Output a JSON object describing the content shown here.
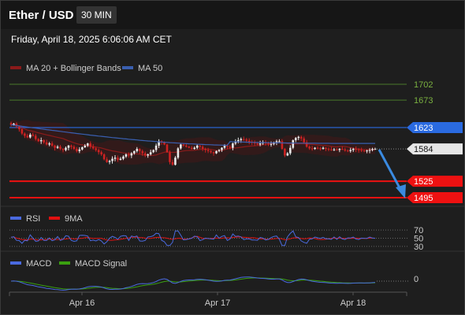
{
  "header": {
    "pair": "Ether / USD",
    "timeframe": "30 MIN",
    "datetime": "Friday, April 18, 2025 6:06:06 AM CET"
  },
  "colors": {
    "bg": "#1e1e1e",
    "up_candle": "#e8e8e8",
    "down_candle": "#cc2222",
    "ma20": "#8b1a1a",
    "ma50": "#3a5fb0",
    "green_level": "#4a7a2a",
    "blue_level": "#2a6ae0",
    "red_level": "#ee1111",
    "arrow": "#3a8ae0",
    "rsi": "#4a6adf",
    "rsi_ma": "#e01010",
    "macd": "#4a6adf",
    "macd_signal": "#3aa010"
  },
  "chart_data": [
    {
      "type": "candlestick",
      "legend": [
        {
          "name": "MA 20 + Bollinger Bands",
          "color": "#8b1a1a"
        },
        {
          "name": "MA 50",
          "color": "#3a5fb0"
        }
      ],
      "ylim": [
        1480,
        1720
      ],
      "levels": [
        {
          "value": 1702,
          "label": "1702",
          "style": "green-line"
        },
        {
          "value": 1673,
          "label": "1673",
          "style": "green-line"
        },
        {
          "value": 1623,
          "label": "1623",
          "style": "blue-tag"
        },
        {
          "value": 1584,
          "label": "1584",
          "style": "current-price"
        },
        {
          "value": 1525,
          "label": "1525",
          "style": "red-tag"
        },
        {
          "value": 1495,
          "label": "1495",
          "style": "red-tag"
        }
      ],
      "x_ticks": [
        "Apr 16",
        "Apr 17",
        "Apr 18"
      ],
      "close_series": [
        1628,
        1630,
        1625,
        1620,
        1612,
        1608,
        1605,
        1610,
        1608,
        1602,
        1598,
        1600,
        1596,
        1592,
        1594,
        1590,
        1586,
        1588,
        1584,
        1582,
        1586,
        1590,
        1588,
        1584,
        1580,
        1583,
        1587,
        1590,
        1594,
        1588,
        1585,
        1582,
        1578,
        1574,
        1565,
        1560,
        1562,
        1566,
        1568,
        1564,
        1566,
        1570,
        1574,
        1572,
        1576,
        1580,
        1584,
        1580,
        1576,
        1572,
        1574,
        1578,
        1582,
        1590,
        1598,
        1596,
        1592,
        1578,
        1560,
        1555,
        1568,
        1585,
        1592,
        1590,
        1588,
        1586,
        1584,
        1586,
        1590,
        1588,
        1584,
        1582,
        1580,
        1578,
        1576,
        1580,
        1582,
        1586,
        1590,
        1588,
        1586,
        1594,
        1598,
        1600,
        1602,
        1601,
        1599,
        1597,
        1596,
        1594,
        1592,
        1594,
        1596,
        1594,
        1592,
        1593,
        1596,
        1598,
        1598,
        1584,
        1572,
        1576,
        1586,
        1600,
        1604,
        1606,
        1603,
        1596,
        1588,
        1585,
        1584,
        1586,
        1585,
        1584,
        1586,
        1584,
        1583,
        1582,
        1583,
        1582,
        1584,
        1583,
        1581,
        1580,
        1582,
        1584,
        1583,
        1582,
        1581,
        1580,
        1581,
        1582,
        1584,
        1584
      ],
      "ma50_start": 1628,
      "ma50_end": 1594
    },
    {
      "type": "line",
      "legend": [
        {
          "name": "RSI",
          "color": "#4a6adf"
        },
        {
          "name": "9MA",
          "color": "#e01010"
        }
      ],
      "ylim": [
        20,
        80
      ],
      "levels": [
        70,
        50,
        30
      ],
      "level_labels": [
        "70",
        "50",
        "30"
      ]
    },
    {
      "type": "line",
      "legend": [
        {
          "name": "MACD",
          "color": "#4a6adf"
        },
        {
          "name": "MACD Signal",
          "color": "#3aa010"
        }
      ],
      "zero_label": "0"
    }
  ]
}
